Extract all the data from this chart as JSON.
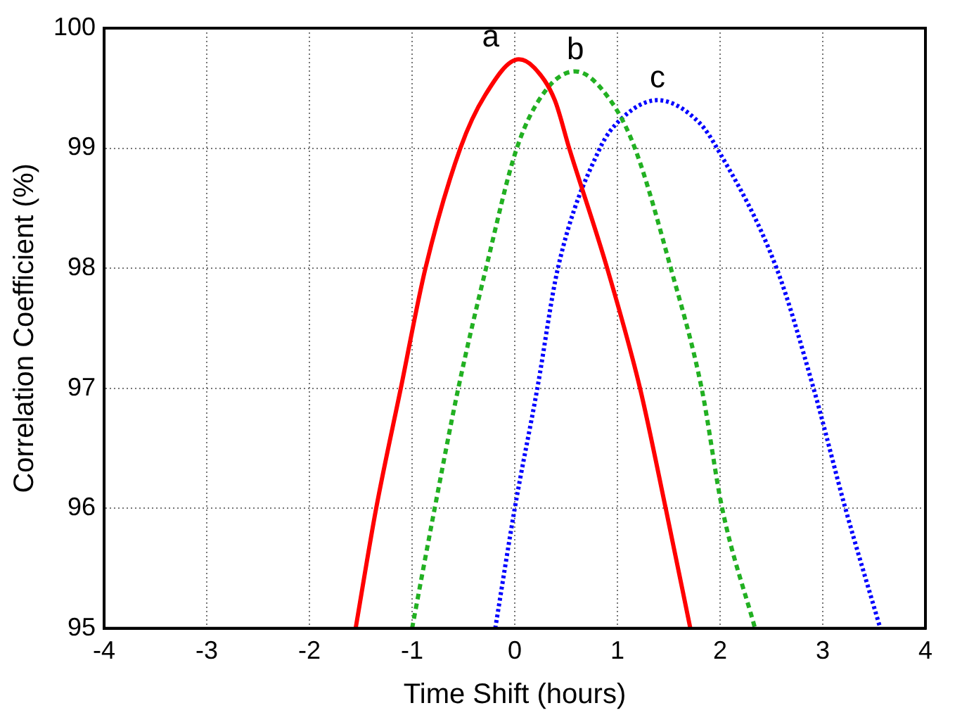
{
  "chart_data": {
    "type": "line",
    "xlabel": "Time Shift (hours)",
    "ylabel": "Correlation Coefficient (%)",
    "xlim": [
      -4,
      4
    ],
    "xticks": [
      -4,
      -3,
      -2,
      -1,
      0,
      1,
      2,
      3,
      4
    ],
    "ylim": [
      95,
      100
    ],
    "yticks": [
      95,
      96,
      97,
      98,
      99,
      100
    ],
    "grid": true,
    "legend": false,
    "marker": "none",
    "series": [
      {
        "name": "a",
        "color": "#ff0000",
        "line_style": "solid",
        "x": [
          -1.55,
          -1.35,
          -1.11,
          -0.87,
          -0.53,
          -0.29,
          0.04,
          0.19,
          0.39,
          0.53,
          0.9,
          1.22,
          1.47,
          1.71
        ],
        "values": [
          95,
          96,
          97,
          98,
          99,
          99.44,
          99.74,
          99.67,
          99.4,
          99,
          98,
          97,
          96,
          95
        ]
      },
      {
        "name": "b",
        "color": "#22b022",
        "line_style": "dashed",
        "x": [
          -1.0,
          -0.78,
          -0.55,
          -0.28,
          0.02,
          0.3,
          0.59,
          0.93,
          1.17,
          1.52,
          1.82,
          2.02,
          2.34
        ],
        "values": [
          95,
          96,
          97,
          98,
          99,
          99.48,
          99.64,
          99.4,
          99,
          98,
          97,
          96,
          95
        ]
      },
      {
        "name": "c",
        "color": "#0000ff",
        "line_style": "dotted",
        "x": [
          -0.19,
          0.0,
          0.22,
          0.42,
          0.83,
          1.02,
          1.39,
          1.8,
          1.97,
          2.55,
          2.91,
          3.22,
          3.56
        ],
        "values": [
          95,
          96,
          97,
          98,
          99,
          99.23,
          99.4,
          99.21,
          99,
          98,
          97,
          96,
          95
        ]
      }
    ]
  }
}
